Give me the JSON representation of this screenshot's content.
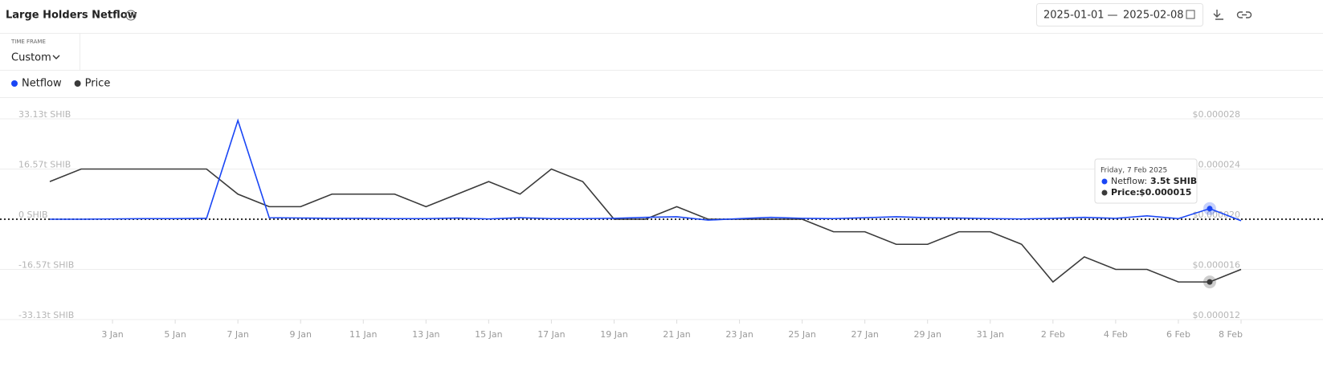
{
  "header": {
    "title": "Large Holders Netflow",
    "help_icon": "?"
  },
  "date_range": {
    "start": "2025-01-01",
    "separator": "—",
    "end": "2025-02-08"
  },
  "time_frame": {
    "label": "TIME FRAME",
    "value": "Custom"
  },
  "tooltip": {
    "title": "Friday, 7 Feb 2025",
    "rows": [
      {
        "label": "Netflow:",
        "value": "3.5t SHIB"
      },
      {
        "label": "Price:",
        "value": "$0.000015"
      }
    ]
  },
  "chart_data": {
    "type": "line",
    "categories": [
      null,
      null,
      "3 Jan",
      null,
      "5 Jan",
      null,
      "7 Jan",
      null,
      "9 Jan",
      null,
      "11 Jan",
      null,
      "13 Jan",
      null,
      "15 Jan",
      null,
      "17 Jan",
      null,
      "19 Jan",
      null,
      "21 Jan",
      null,
      "23 Jan",
      null,
      "25 Jan",
      null,
      "27 Jan",
      null,
      "29 Jan",
      null,
      "31 Jan",
      null,
      "2 Feb",
      null,
      "4 Feb",
      null,
      "6 Feb",
      null,
      "8 Feb"
    ],
    "series": [
      {
        "name": "Netflow",
        "color": "#1a46f5",
        "values": [
          0,
          0,
          0.1,
          0.2,
          0.2,
          0.3,
          32.6,
          0.5,
          0.4,
          0.3,
          0.3,
          0.2,
          0.2,
          0.4,
          0.1,
          0.5,
          0.2,
          0.2,
          0.3,
          0.6,
          0.8,
          -0.3,
          0.2,
          0.6,
          0.3,
          0.2,
          0.5,
          0.8,
          0.5,
          0.4,
          0.2,
          0.1,
          0.3,
          0.6,
          0.3,
          1.1,
          0.2,
          3.5,
          -0.5
        ]
      },
      {
        "name": "Price",
        "color": "#3a3a3a",
        "axis": "y2",
        "values": [
          2.3e-05,
          2.4e-05,
          2.4e-05,
          2.4e-05,
          2.4e-05,
          2.4e-05,
          2.2e-05,
          2.1e-05,
          2.1e-05,
          2.2e-05,
          2.2e-05,
          2.2e-05,
          2.1e-05,
          2.2e-05,
          2.3e-05,
          2.2e-05,
          2.4e-05,
          2.3e-05,
          2e-05,
          2e-05,
          2.1e-05,
          2e-05,
          2e-05,
          2e-05,
          2e-05,
          1.9e-05,
          1.9e-05,
          1.8e-05,
          1.8e-05,
          1.9e-05,
          1.9e-05,
          1.8e-05,
          1.5e-05,
          1.7e-05,
          1.6e-05,
          1.6e-05,
          1.5e-05,
          1.5e-05,
          1.6e-05
        ]
      }
    ],
    "ylim": [
      -33.13,
      33.13
    ],
    "yticks": [
      {
        "value": -33.13,
        "label": "-33.13t SHIB"
      },
      {
        "value": -16.57,
        "label": "-16.57t SHIB"
      },
      {
        "value": 0,
        "label": "0 SHIB"
      },
      {
        "value": 16.57,
        "label": "16.57t SHIB"
      },
      {
        "value": 33.13,
        "label": "33.13t SHIB"
      }
    ],
    "y2lim": [
      1.2e-05,
      2.8e-05
    ],
    "y2ticks": [
      {
        "value": 1.2e-05,
        "label": "$0.000012"
      },
      {
        "value": 1.6e-05,
        "label": "$0.000016"
      },
      {
        "value": 2e-05,
        "label": "$0.000020"
      },
      {
        "value": 2.4e-05,
        "label": "$0.000024"
      },
      {
        "value": 2.8e-05,
        "label": "$0.000028"
      }
    ],
    "grid": true,
    "legend": "top-left"
  }
}
